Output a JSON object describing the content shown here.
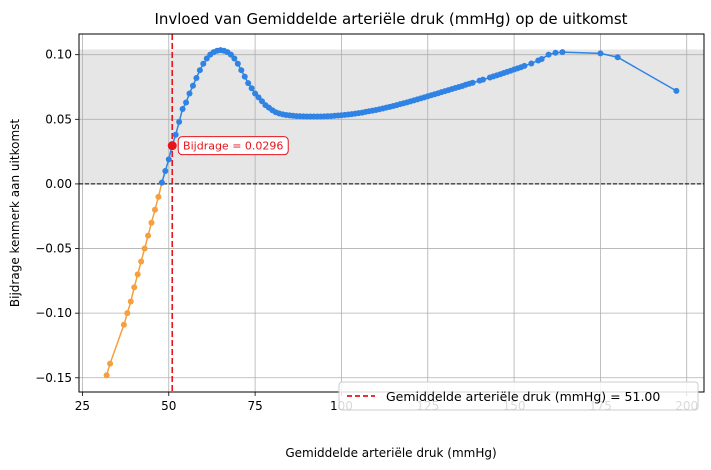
{
  "chart_data": {
    "type": "line",
    "title": "Invloed van Gemiddelde arteriële druk (mmHg) op de uitkomst",
    "xlabel": "Gemiddelde arteriële druk (mmHg)",
    "ylabel": "Bijdrage kenmerk aan uitkomst",
    "xlim": [
      24,
      205
    ],
    "ylim": [
      -0.161,
      0.116
    ],
    "xticks": [
      25,
      50,
      75,
      100,
      125,
      150,
      175,
      200
    ],
    "yticks": [
      -0.15,
      -0.1,
      -0.05,
      0.0,
      0.05,
      0.1
    ],
    "xtick_labels": [
      "25",
      "50",
      "75",
      "100",
      "125",
      "150",
      "175",
      "200"
    ],
    "ytick_labels": [
      "−0.15",
      "−0.10",
      "−0.05",
      "0.00",
      "0.05",
      "0.10"
    ],
    "grid": true,
    "shaded_band": {
      "y_from": 0.0,
      "y_to": 0.104,
      "color": "#e6e6e6"
    },
    "zero_line": {
      "y": 0.0,
      "color": "#000000",
      "style": "dashed"
    },
    "reference_line": {
      "x": 51.0,
      "color": "#e8141c",
      "style": "dashed",
      "legend_label": "Gemiddelde arteriële druk (mmHg) = 51.00"
    },
    "highlight_point": {
      "x": 51.0,
      "y": 0.0296,
      "color": "#e8141c",
      "label": "Bijdrage = 0.0296"
    },
    "legend_position": "lower-right",
    "series": [
      {
        "color": "#f5a03c",
        "points": [
          [
            32,
            -0.148
          ],
          [
            33,
            -0.139
          ],
          [
            37,
            -0.109
          ],
          [
            38,
            -0.1
          ],
          [
            39,
            -0.091
          ],
          [
            40,
            -0.08
          ],
          [
            41,
            -0.07
          ],
          [
            42,
            -0.06
          ],
          [
            43,
            -0.05
          ],
          [
            44,
            -0.04
          ],
          [
            45,
            -0.03
          ],
          [
            46,
            -0.02
          ],
          [
            47,
            -0.01
          ],
          [
            48,
            0.001
          ]
        ]
      },
      {
        "color": "#2f83e4",
        "points": [
          [
            48,
            0.001
          ],
          [
            49,
            0.01
          ],
          [
            50,
            0.019
          ],
          [
            51,
            0.03
          ],
          [
            52,
            0.038
          ],
          [
            53,
            0.048
          ],
          [
            54,
            0.058
          ],
          [
            55,
            0.063
          ],
          [
            56,
            0.07
          ],
          [
            57,
            0.076
          ],
          [
            58,
            0.082
          ],
          [
            59,
            0.088
          ],
          [
            60,
            0.093
          ],
          [
            61,
            0.097
          ],
          [
            62,
            0.1
          ],
          [
            63,
            0.102
          ],
          [
            64,
            0.103
          ],
          [
            65,
            0.1035
          ],
          [
            66,
            0.103
          ],
          [
            67,
            0.102
          ],
          [
            68,
            0.1
          ],
          [
            69,
            0.097
          ],
          [
            70,
            0.093
          ],
          [
            71,
            0.088
          ],
          [
            72,
            0.083
          ],
          [
            73,
            0.078
          ],
          [
            74,
            0.074
          ],
          [
            75,
            0.07
          ],
          [
            76,
            0.067
          ],
          [
            77,
            0.064
          ],
          [
            78,
            0.061
          ],
          [
            79,
            0.059
          ],
          [
            80,
            0.057
          ],
          [
            81,
            0.0555
          ],
          [
            82,
            0.0545
          ],
          [
            83,
            0.0538
          ],
          [
            84,
            0.0533
          ],
          [
            85,
            0.053
          ],
          [
            86,
            0.0527
          ],
          [
            87,
            0.0525
          ],
          [
            88,
            0.0524
          ],
          [
            89,
            0.0523
          ],
          [
            90,
            0.0522
          ],
          [
            91,
            0.0522
          ],
          [
            92,
            0.0522
          ],
          [
            93,
            0.0522
          ],
          [
            94,
            0.0522
          ],
          [
            95,
            0.0523
          ],
          [
            96,
            0.0524
          ],
          [
            97,
            0.0525
          ],
          [
            98,
            0.0527
          ],
          [
            99,
            0.0529
          ],
          [
            100,
            0.0531
          ],
          [
            101,
            0.0534
          ],
          [
            102,
            0.0537
          ],
          [
            103,
            0.054
          ],
          [
            104,
            0.0544
          ],
          [
            105,
            0.0548
          ],
          [
            106,
            0.0552
          ],
          [
            107,
            0.0557
          ],
          [
            108,
            0.0562
          ],
          [
            109,
            0.0567
          ],
          [
            110,
            0.0572
          ],
          [
            111,
            0.0578
          ],
          [
            112,
            0.0584
          ],
          [
            113,
            0.059
          ],
          [
            114,
            0.0596
          ],
          [
            115,
            0.0603
          ],
          [
            116,
            0.061
          ],
          [
            117,
            0.0617
          ],
          [
            118,
            0.0624
          ],
          [
            119,
            0.0631
          ],
          [
            120,
            0.0639
          ],
          [
            121,
            0.0646
          ],
          [
            122,
            0.0654
          ],
          [
            123,
            0.0662
          ],
          [
            124,
            0.067
          ],
          [
            125,
            0.0678
          ],
          [
            126,
            0.0686
          ],
          [
            127,
            0.0694
          ],
          [
            128,
            0.0702
          ],
          [
            129,
            0.071
          ],
          [
            130,
            0.0718
          ],
          [
            131,
            0.0726
          ],
          [
            132,
            0.0734
          ],
          [
            133,
            0.0742
          ],
          [
            134,
            0.075
          ],
          [
            135,
            0.0758
          ],
          [
            136,
            0.0767
          ],
          [
            137,
            0.0775
          ],
          [
            138,
            0.0783
          ],
          [
            140,
            0.0799
          ],
          [
            141,
            0.0807
          ],
          [
            143,
            0.0823
          ],
          [
            144,
            0.0832
          ],
          [
            145,
            0.084
          ],
          [
            146,
            0.0849
          ],
          [
            147,
            0.0858
          ],
          [
            148,
            0.0867
          ],
          [
            149,
            0.0876
          ],
          [
            150,
            0.0885
          ],
          [
            151,
            0.0894
          ],
          [
            152,
            0.0903
          ],
          [
            153,
            0.0913
          ],
          [
            155,
            0.0932
          ],
          [
            157,
            0.0955
          ],
          [
            158,
            0.0967
          ],
          [
            160,
            0.1
          ],
          [
            162,
            0.1015
          ],
          [
            164,
            0.102
          ],
          [
            175,
            0.101
          ],
          [
            180,
            0.098
          ],
          [
            197,
            0.072
          ]
        ]
      }
    ]
  }
}
